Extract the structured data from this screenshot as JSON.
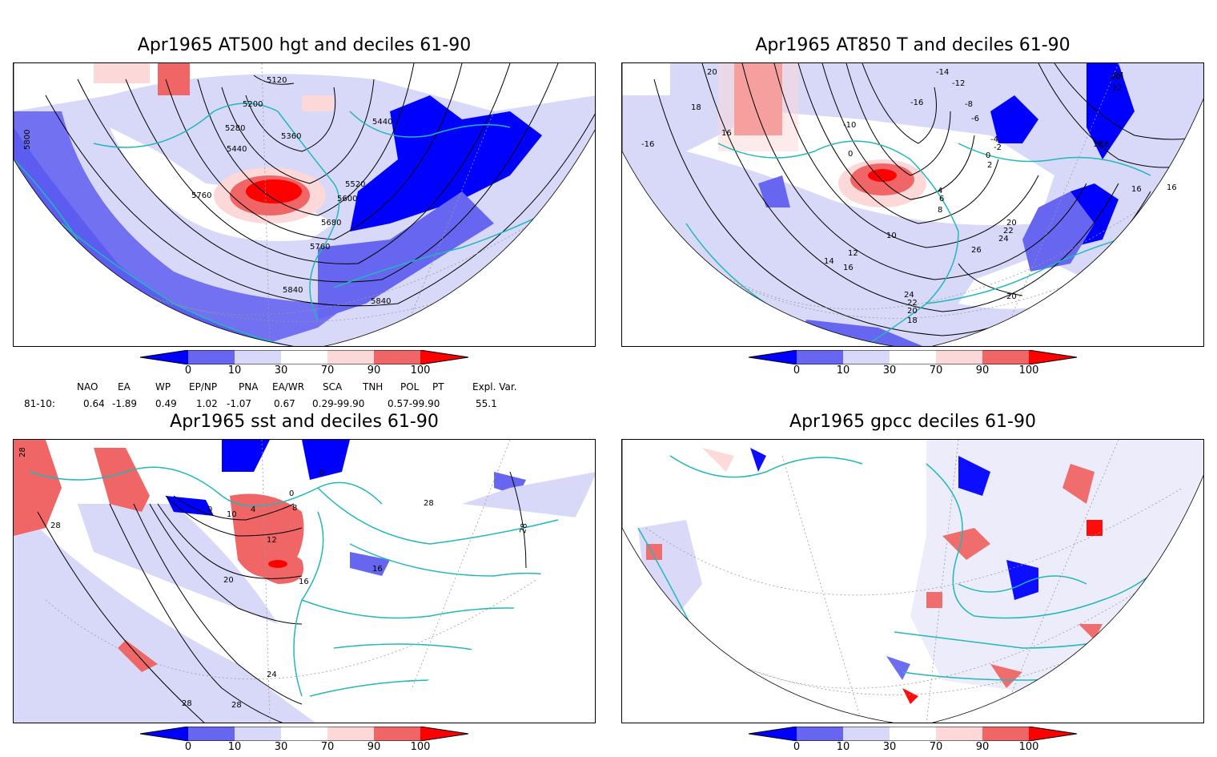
{
  "panels": [
    {
      "id": "p1",
      "title": "Apr1965 AT500 hgt and deciles 61-90",
      "contour_labels": [
        "5120",
        "5200",
        "5280",
        "5440",
        "5360",
        "5440",
        "5520",
        "5600",
        "5680",
        "5760",
        "5760",
        "5840",
        "5840",
        "5800"
      ]
    },
    {
      "id": "p2",
      "title": "Apr1965 AT850 T and deciles 61-90",
      "contour_labels": [
        "20",
        "18",
        "16",
        "-16",
        "-14",
        "-12",
        "-16",
        "-10",
        "-8",
        "-6",
        "-4",
        "-2",
        "0",
        "0",
        "2",
        "4",
        "6",
        "8",
        "10",
        "12",
        "14",
        "16",
        "16",
        "18",
        "18",
        "20",
        "22",
        "24",
        "20",
        "22",
        "24",
        "26",
        "24",
        "22",
        "20",
        "18",
        "20",
        "16"
      ]
    },
    {
      "id": "p3",
      "title": "Apr1965 sst and deciles 61-90",
      "contour_labels": [
        "28",
        "28",
        "0",
        "0",
        "0",
        "4",
        "8",
        "10",
        "12",
        "16",
        "16",
        "20",
        "24",
        "28",
        "28",
        "28",
        "28"
      ]
    },
    {
      "id": "p4",
      "title": "Apr1965 gpcc deciles 61-90",
      "contour_labels": []
    }
  ],
  "colorbar": {
    "labels": [
      "0",
      "10",
      "30",
      "70",
      "90",
      "100"
    ],
    "colors": [
      "#0000ff",
      "#6666f0",
      "#d8d8f8",
      "#ffffff",
      "#fcd8d8",
      "#f06666",
      "#ff0000"
    ]
  },
  "indices": {
    "header": [
      "NAO",
      "EA",
      "WP",
      "EP/NP",
      "PNA",
      "EA/WR",
      "SCA",
      "TNH",
      "POL",
      "PT",
      "Expl. Var."
    ],
    "row_label": "81-10:",
    "values": [
      "0.64",
      "-1.89",
      "0.49",
      "1.02",
      "-1.07",
      "0.67",
      "0.29-99.90",
      "0.57-99.90",
      "55.1"
    ]
  },
  "colors": {
    "coast": "#20b8b8",
    "contour": "#000000",
    "grid": "#9a9a9a"
  }
}
